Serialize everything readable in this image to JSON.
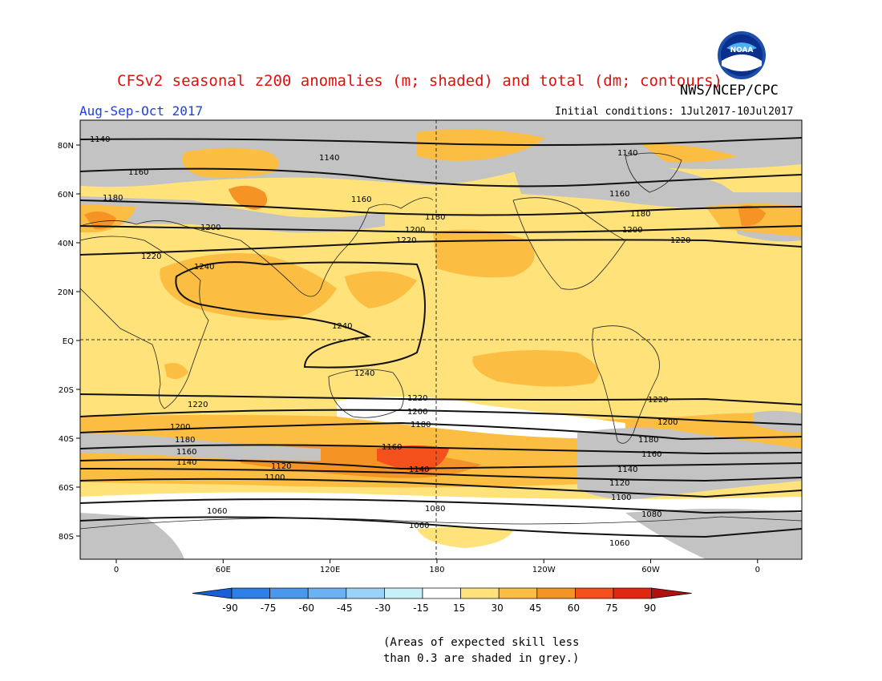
{
  "header": {
    "title": "CFSv2 seasonal z200 anomalies (m; shaded) and total (dm; contours)",
    "agency": "NWS/NCEP/CPC",
    "season": "Aug-Sep-Oct 2017",
    "initial_conditions": "Initial conditions: 1Jul2017-10Jul2017",
    "logo_text": "NOAA"
  },
  "map": {
    "lat_labels": [
      "80N",
      "60N",
      "40N",
      "20N",
      "EQ",
      "20S",
      "40S",
      "60S",
      "80S"
    ],
    "lon_labels": [
      "0",
      "60E",
      "120E",
      "180",
      "120W",
      "60W",
      "0"
    ],
    "contour_labels": [
      "1060",
      "1080",
      "1100",
      "1120",
      "1140",
      "1160",
      "1180",
      "1200",
      "1220",
      "1240"
    ]
  },
  "colorbar": {
    "labels": [
      "-90",
      "-75",
      "-60",
      "-45",
      "-30",
      "-15",
      "15",
      "30",
      "45",
      "60",
      "75",
      "90"
    ],
    "colors": [
      "#1a5fd6",
      "#2c7fe6",
      "#4a98ee",
      "#6ab2f4",
      "#9cd2f8",
      "#c8f0f8",
      "#ffffff",
      "#ffe27a",
      "#fbbd42",
      "#f59424",
      "#f4501c",
      "#e02810",
      "#b01010"
    ]
  },
  "footnote": {
    "line1": "(Areas of expected skill less",
    "line2": "than 0.3 are shaded in grey.)"
  }
}
